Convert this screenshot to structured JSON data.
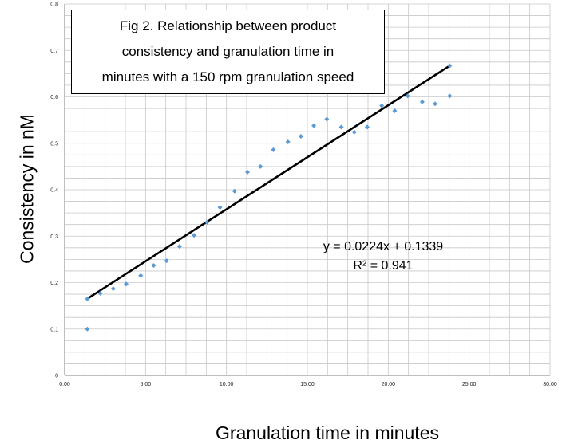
{
  "chart_data": {
    "type": "scatter",
    "title_lines": [
      "Fig 2. Relationship between product",
      "consistency and granulation time in",
      "minutes with a 150 rpm granulation speed"
    ],
    "xlabel": "Granulation time in minutes",
    "ylabel": "Consistency in nM",
    "xlim": [
      0,
      30
    ],
    "ylim": [
      0,
      0.8
    ],
    "x_ticks": [
      "0.00",
      "5.00",
      "10.00",
      "15.00",
      "20.00",
      "25.00",
      "30.00"
    ],
    "y_ticks": [
      "0",
      "0.1",
      "0.2",
      "0.3",
      "0.4",
      "0.5",
      "0.6",
      "0.7",
      "0.8"
    ],
    "grid": true,
    "marker_color": "#5b9bd5",
    "trendline_color": "#000000",
    "series": [
      {
        "points": [
          [
            1.4,
            0.1
          ],
          [
            1.4,
            0.165
          ],
          [
            2.2,
            0.177
          ],
          [
            3.0,
            0.187
          ],
          [
            3.8,
            0.197
          ],
          [
            4.7,
            0.215
          ],
          [
            5.5,
            0.237
          ],
          [
            6.3,
            0.247
          ],
          [
            7.1,
            0.278
          ],
          [
            8.0,
            0.302
          ],
          [
            8.8,
            0.33
          ],
          [
            9.6,
            0.362
          ],
          [
            10.5,
            0.397
          ],
          [
            11.3,
            0.438
          ],
          [
            12.1,
            0.45
          ],
          [
            12.9,
            0.486
          ],
          [
            13.8,
            0.503
          ],
          [
            14.6,
            0.515
          ],
          [
            15.4,
            0.538
          ],
          [
            16.2,
            0.552
          ],
          [
            17.1,
            0.535
          ],
          [
            17.9,
            0.524
          ],
          [
            18.7,
            0.535
          ],
          [
            19.6,
            0.581
          ],
          [
            20.4,
            0.57
          ],
          [
            21.2,
            0.602
          ],
          [
            22.1,
            0.589
          ],
          [
            22.9,
            0.585
          ],
          [
            23.8,
            0.602
          ],
          [
            23.8,
            0.667
          ]
        ]
      }
    ],
    "trendline": {
      "slope": 0.0224,
      "intercept": 0.1339,
      "x_range": [
        1.4,
        23.8
      ]
    },
    "equation_lines": [
      "y = 0.0224x + 0.1339",
      "R² = 0.941"
    ]
  }
}
